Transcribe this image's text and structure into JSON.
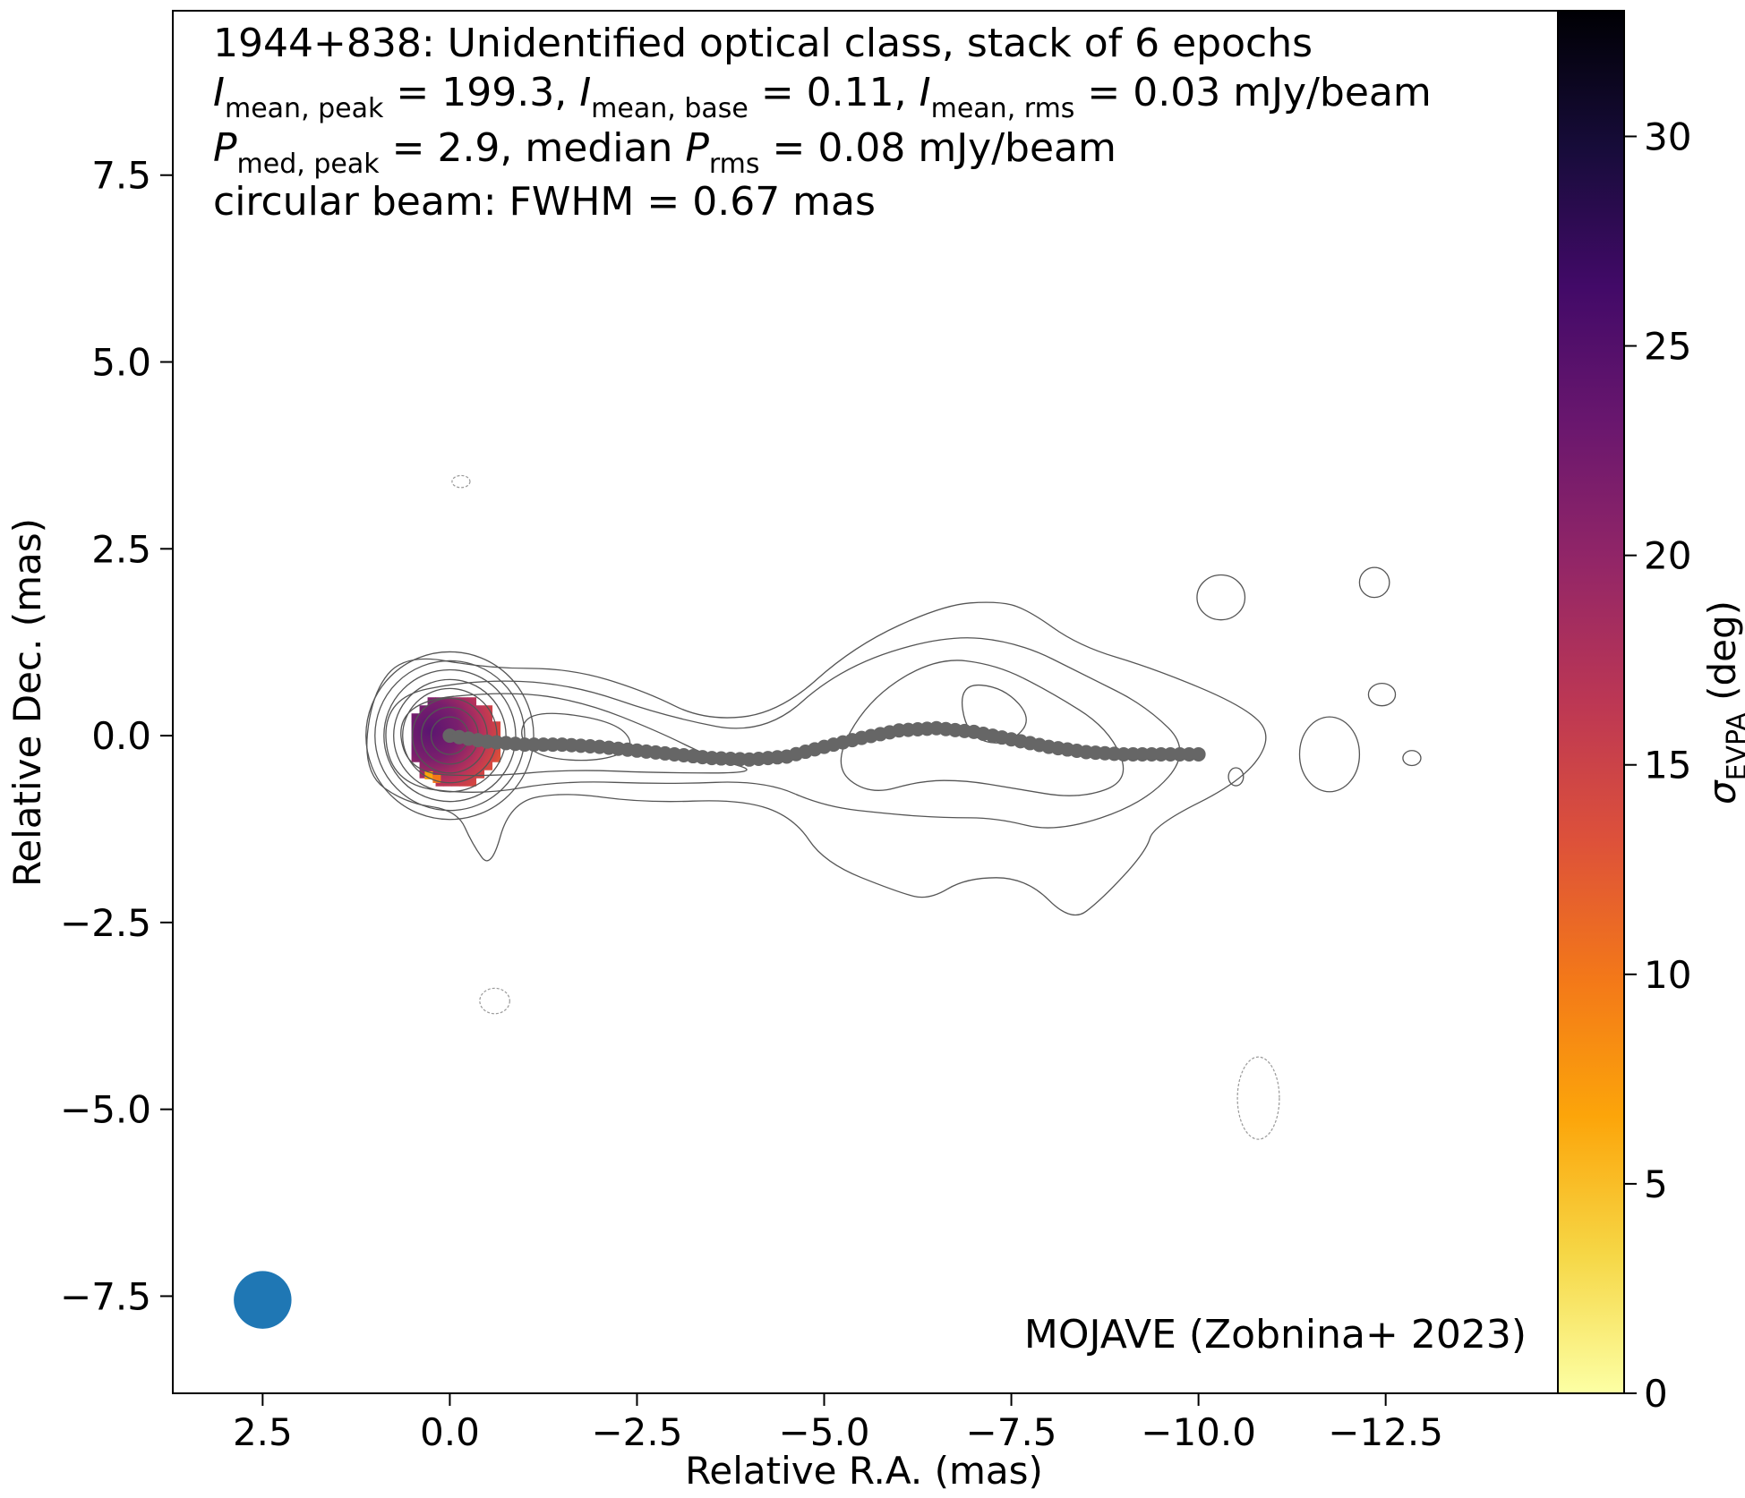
{
  "chart_data": {
    "type": "heatmap",
    "title": "1944+838: Unidentified optical class, stack of 6 epochs",
    "annotations": {
      "line2": {
        "s1": "I",
        "sub1": "mean, peak",
        "t1": " = 199.3, ",
        "s2": "I",
        "sub2": "mean, base",
        "t2": " = 0.11, ",
        "s3": "I",
        "sub3": "mean, rms",
        "t3": " = 0.03 mJy/beam"
      },
      "line3": {
        "s1": "P",
        "sub1": "med, peak",
        "t1": " = 2.9, median ",
        "s2": "P",
        "sub2": "rms",
        "t2": " = 0.08 mJy/beam"
      },
      "line4": "circular beam: FWHM = 0.67 mas",
      "credit": "MOJAVE (Zobnina+ 2023)"
    },
    "xlabel": "Relative R.A. (mas)",
    "ylabel": "Relative Dec. (mas)",
    "xlim": [
      3.7,
      -14.8
    ],
    "ylim": [
      -8.8,
      9.7
    ],
    "xticks": [
      {
        "v": 2.5,
        "label": "2.5"
      },
      {
        "v": 0.0,
        "label": "0.0"
      },
      {
        "v": -2.5,
        "label": "−2.5"
      },
      {
        "v": -5.0,
        "label": "−5.0"
      },
      {
        "v": -7.5,
        "label": "−7.5"
      },
      {
        "v": -10.0,
        "label": "−10.0"
      },
      {
        "v": -12.5,
        "label": "−12.5"
      }
    ],
    "yticks": [
      {
        "v": 7.5,
        "label": "7.5"
      },
      {
        "v": 5.0,
        "label": "5.0"
      },
      {
        "v": 2.5,
        "label": "2.5"
      },
      {
        "v": 0.0,
        "label": "0.0"
      },
      {
        "v": -2.5,
        "label": "−2.5"
      },
      {
        "v": -5.0,
        "label": "−5.0"
      },
      {
        "v": -7.5,
        "label": "−7.5"
      }
    ],
    "colorbar": {
      "label_symbol": "σ",
      "label_sub": "EVPA",
      "label_unit": " (deg)",
      "colormap": "inferno_r",
      "range": [
        0,
        33
      ],
      "ticks": [
        {
          "v": 0,
          "label": "0"
        },
        {
          "v": 5,
          "label": "5"
        },
        {
          "v": 10,
          "label": "10"
        },
        {
          "v": 15,
          "label": "15"
        },
        {
          "v": 20,
          "label": "20"
        },
        {
          "v": 25,
          "label": "25"
        },
        {
          "v": 30,
          "label": "30"
        }
      ]
    },
    "beam": {
      "x": 2.5,
      "y": -7.55,
      "fwhm": 0.67,
      "color": "#1f77b4"
    },
    "ridgeline": {
      "color": "#666666",
      "x": [
        0.0,
        -0.5,
        -1.0,
        -1.5,
        -2.0,
        -2.5,
        -3.0,
        -3.5,
        -4.0,
        -4.5,
        -5.0,
        -5.5,
        -6.0,
        -6.5,
        -7.0,
        -7.5,
        -8.0,
        -8.5,
        -9.0,
        -9.5,
        -10.0
      ],
      "y": [
        0.0,
        -0.08,
        -0.12,
        -0.12,
        -0.15,
        -0.2,
        -0.25,
        -0.3,
        -0.32,
        -0.28,
        -0.15,
        -0.03,
        0.07,
        0.1,
        0.05,
        -0.05,
        -0.15,
        -0.22,
        -0.25,
        -0.25,
        -0.25
      ]
    },
    "evpa_map": {
      "center": [
        0.0,
        0.0
      ],
      "radius": 0.62,
      "description_values": {
        "core": 23,
        "east_edge": 27,
        "west_edge": 14,
        "south_edge": 6
      }
    },
    "contours": {
      "color": "#555555",
      "core_radii": [
        0.25,
        0.38,
        0.5,
        0.63,
        0.75,
        0.88,
        1.0,
        1.12
      ],
      "dashed_blobs": [
        {
          "x": -0.15,
          "y": 3.4,
          "rx": 0.12,
          "ry": 0.08
        },
        {
          "x": -0.6,
          "y": -3.55,
          "rx": 0.2,
          "ry": 0.17
        },
        {
          "x": -10.8,
          "y": -4.85,
          "rx": 0.28,
          "ry": 0.55
        }
      ],
      "isolated_blobs": [
        {
          "x": -10.3,
          "y": 1.85,
          "rx": 0.32,
          "ry": 0.3
        },
        {
          "x": -12.35,
          "y": 2.05,
          "rx": 0.2,
          "ry": 0.2
        },
        {
          "x": -12.45,
          "y": 0.55,
          "rx": 0.18,
          "ry": 0.15
        },
        {
          "x": -11.75,
          "y": -0.25,
          "rx": 0.4,
          "ry": 0.5
        },
        {
          "x": -10.5,
          "y": -0.55,
          "rx": 0.1,
          "ry": 0.12
        },
        {
          "x": -12.85,
          "y": -0.3,
          "rx": 0.12,
          "ry": 0.1
        }
      ]
    },
    "grid": false,
    "legend": "none"
  }
}
